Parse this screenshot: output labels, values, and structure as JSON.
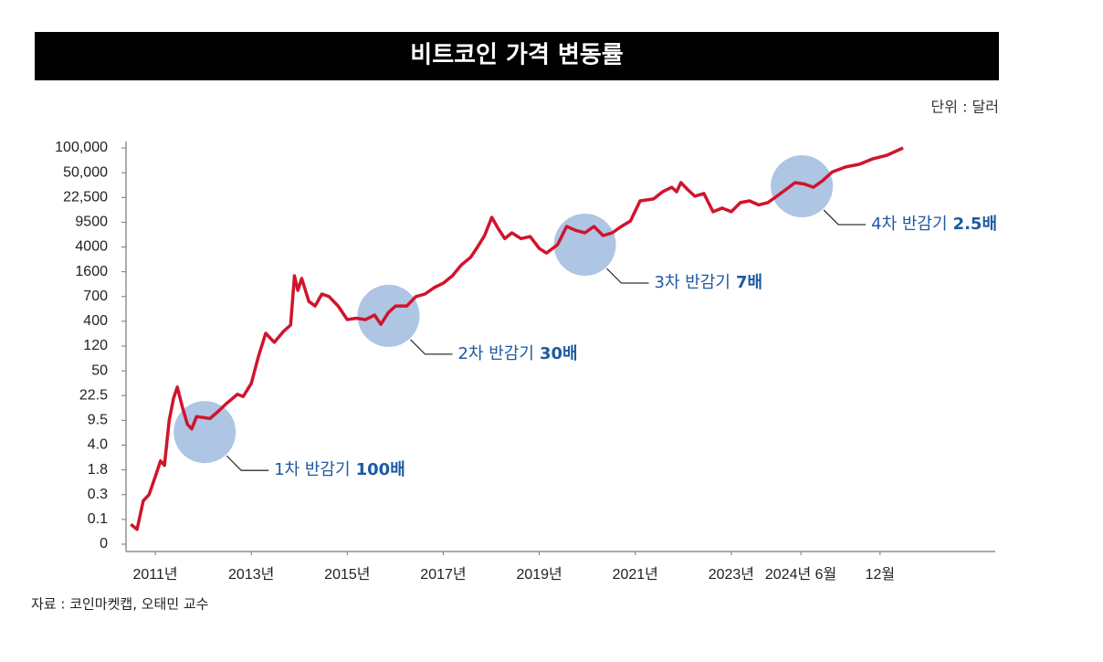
{
  "chart_data": {
    "type": "line",
    "title": "비트코인 가격 변동률",
    "unit": "단위 : 달러",
    "source": "자료 : 코인마켓캡, 오태민 교수",
    "color": "#d0142c",
    "highlight_color": "#9ab6dc",
    "label_color": "#1f5aa0",
    "x": [
      2010.49,
      2010.62,
      2010.75,
      2010.87,
      2011.0,
      2011.11,
      2011.19,
      2011.29,
      2011.38,
      2011.46,
      2011.57,
      2011.67,
      2011.76,
      2011.86,
      2011.99,
      2012.14,
      2012.3,
      2012.47,
      2012.71,
      2012.83,
      2013.0,
      2013.15,
      2013.3,
      2013.48,
      2013.67,
      2013.82,
      2013.9,
      2013.97,
      2014.05,
      2014.2,
      2014.33,
      2014.47,
      2014.62,
      2014.81,
      2015.0,
      2015.19,
      2015.38,
      2015.57,
      2015.7,
      2015.86,
      2016.01,
      2016.24,
      2016.43,
      2016.62,
      2016.81,
      2017.0,
      2017.19,
      2017.38,
      2017.57,
      2017.72,
      2017.86,
      2018.01,
      2018.14,
      2018.28,
      2018.43,
      2018.62,
      2018.81,
      2019.0,
      2019.15,
      2019.38,
      2019.57,
      2019.76,
      2019.95,
      2020.14,
      2020.33,
      2020.52,
      2020.71,
      2020.9,
      2021.1,
      2021.38,
      2021.57,
      2021.76,
      2021.86,
      2021.95,
      2022.09,
      2022.24,
      2022.43,
      2022.62,
      2022.81,
      2023.0,
      2023.19,
      2023.38,
      2023.57,
      2023.76,
      2023.95,
      2024.14,
      2024.33,
      2024.52,
      2024.71,
      2024.9,
      2025.1,
      2025.38,
      2025.67,
      2025.95,
      2026.24,
      2026.58
    ],
    "values": [
      0.08,
      0.06,
      0.25,
      0.3,
      1.4,
      2.6,
      2.2,
      9.5,
      21,
      32,
      16,
      8.6,
      7.6,
      11.5,
      11,
      10.5,
      14,
      18,
      24,
      22,
      36,
      91,
      265,
      162,
      285,
      358,
      1456,
      925,
      1357,
      640,
      586,
      790,
      700,
      586,
      421,
      437,
      421,
      475,
      366,
      508,
      586,
      586,
      700,
      790,
      1024,
      1186,
      1456,
      2272,
      2992,
      4110,
      6530,
      12100,
      8180,
      5860,
      7135,
      5860,
      6320,
      3860,
      3420,
      4500,
      8565,
      7700,
      7135,
      8565,
      6530,
      7135,
      8565,
      10150,
      20680,
      21700,
      28800,
      33800,
      28800,
      39000,
      31400,
      23900,
      26900,
      15000,
      16900,
      15000,
      19800,
      20680,
      18600,
      19800,
      23900,
      31400,
      39000,
      37500,
      33800,
      41000,
      51400,
      61500,
      67000,
      78000,
      85000,
      100000
    ],
    "xlim": [
      2010.39,
      2028.5
    ],
    "xticks": [
      {
        "value": 2011,
        "label": "2011년"
      },
      {
        "value": 2013,
        "label": "2013년"
      },
      {
        "value": 2015,
        "label": "2015년"
      },
      {
        "value": 2017,
        "label": "2017년"
      },
      {
        "value": 2019,
        "label": "2019년"
      },
      {
        "value": 2021,
        "label": "2021년"
      },
      {
        "value": 2023,
        "label": "2023년"
      },
      {
        "value": 2024.45,
        "label": "2024년 6월"
      },
      {
        "value": 2026.1,
        "label": "12월"
      }
    ],
    "ylim": [
      0,
      100000
    ],
    "yticks": [
      0,
      0.1,
      0.3,
      1.8,
      {
        "value": 4,
        "label": "4.0"
      },
      9.5,
      22.5,
      50,
      120,
      400,
      700,
      1600,
      4000,
      9500,
      {
        "value": 22500,
        "label": "22,500"
      },
      {
        "value": 50000,
        "label": "50,000"
      },
      {
        "value": 100000,
        "label": "100,000"
      }
    ],
    "annotations": [
      {
        "text": "1차 반감기",
        "multiple": "100배",
        "x": 2012.03,
        "y": 6.9
      },
      {
        "text": "2차 반감기",
        "multiple": "30배",
        "x": 2015.86,
        "y": 466
      },
      {
        "text": "3차 반감기",
        "multiple": "7배",
        "x": 2019.95,
        "y": 4500
      },
      {
        "text": "4차 반감기",
        "multiple": "2.5배",
        "x": 2024.47,
        "y": 34900
      }
    ]
  }
}
